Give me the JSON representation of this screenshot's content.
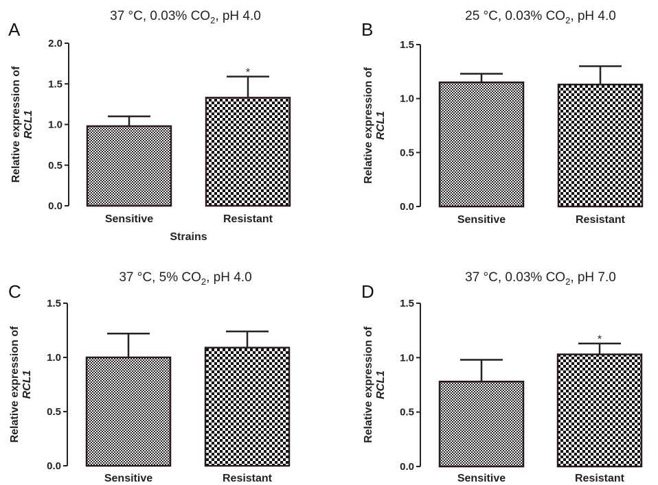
{
  "patterns": {
    "sensitive_colors": [
      "#f4f4f4",
      "#2b2b2b"
    ],
    "resistant_colors": [
      "#ffffff",
      "#111111"
    ]
  },
  "chart_data": [
    {
      "panel": "A",
      "type": "bar",
      "title_main": "37 °C, 0.03% CO",
      "title_sub": "2",
      "title_rest": ", pH 4.0",
      "ylabel_line1": "Relative expression of",
      "ylabel_line2": "RCL1",
      "xlabel": "Strains",
      "categories": [
        "Sensitive",
        "Resistant"
      ],
      "values": [
        0.98,
        1.33
      ],
      "errors": [
        0.12,
        0.26
      ],
      "significance": [
        "",
        "*"
      ],
      "ylim": [
        0,
        2.0
      ],
      "yticks": [
        "0.0",
        "0.5",
        "1.0",
        "1.5",
        "2.0"
      ]
    },
    {
      "panel": "B",
      "type": "bar",
      "title_main": "25 °C, 0.03% CO",
      "title_sub": "2",
      "title_rest": ", pH 4.0",
      "ylabel_line1": "Relative expression of",
      "ylabel_line2": "RCL1",
      "xlabel": "",
      "categories": [
        "Sensitive",
        "Resistant"
      ],
      "values": [
        1.15,
        1.13
      ],
      "errors": [
        0.08,
        0.17
      ],
      "significance": [
        "",
        ""
      ],
      "ylim": [
        0,
        1.5
      ],
      "yticks": [
        "0.0",
        "0.5",
        "1.0",
        "1.5"
      ]
    },
    {
      "panel": "C",
      "type": "bar",
      "title_main": "37 °C, 5% CO",
      "title_sub": "2",
      "title_rest": ", pH 4.0",
      "ylabel_line1": "Relative expression of",
      "ylabel_line2": "RCL1",
      "xlabel": "",
      "categories": [
        "Sensitive",
        "Resistant"
      ],
      "values": [
        1.0,
        1.09
      ],
      "errors": [
        0.22,
        0.15
      ],
      "significance": [
        "",
        ""
      ],
      "ylim": [
        0,
        1.5
      ],
      "yticks": [
        "0.0",
        "0.5",
        "1.0",
        "1.5"
      ]
    },
    {
      "panel": "D",
      "type": "bar",
      "title_main": "37 °C, 0.03% CO",
      "title_sub": "2",
      "title_rest": ", pH 7.0",
      "ylabel_line1": "Relative expression of",
      "ylabel_line2": "RCL1",
      "xlabel": "",
      "categories": [
        "Sensitive",
        "Resistant"
      ],
      "values": [
        0.78,
        1.03
      ],
      "errors": [
        0.2,
        0.1
      ],
      "significance": [
        "",
        "*"
      ],
      "ylim": [
        0,
        1.5
      ],
      "yticks": [
        "0.0",
        "0.5",
        "1.0",
        "1.5"
      ]
    }
  ]
}
